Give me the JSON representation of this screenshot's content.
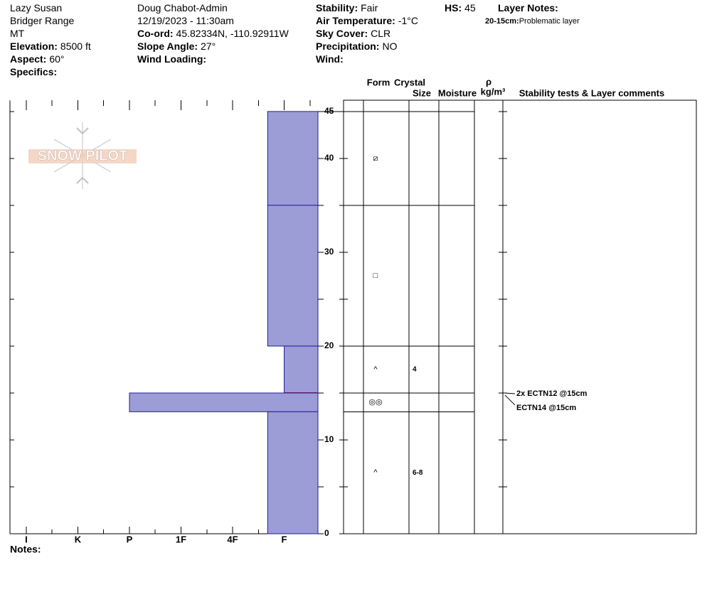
{
  "header": {
    "columns": [
      [
        {
          "value": "Lazy Susan"
        },
        {
          "value": "Bridger Range"
        },
        {
          "value": "MT"
        },
        {
          "label": "Elevation:",
          "value": "8500 ft"
        },
        {
          "label": "Aspect:",
          "value": "60°"
        },
        {
          "label": "Specifics:"
        }
      ],
      [
        {
          "value": "Doug Chabot-Admin"
        },
        {
          "value": "12/19/2023 - 11:30am"
        },
        {
          "label": "Co-ord:",
          "value": "45.82334N, -110.92911W"
        },
        {
          "label": "Slope Angle:",
          "value": "27°"
        },
        {
          "label": "Wind Loading:"
        }
      ],
      [
        {
          "label": "Stability:",
          "value": "Fair"
        },
        {
          "label": "Air Temperature:",
          "value": "-1°C"
        },
        {
          "label": "Sky Cover:",
          "value": "CLR"
        },
        {
          "label": "Precipitation:",
          "value": "NO"
        },
        {
          "label": "Wind:"
        }
      ],
      [
        {
          "label": "HS:",
          "value": "45"
        }
      ],
      [
        {
          "label": "Layer Notes:"
        },
        {
          "label": "20-15cm:",
          "value": "Problematic layer"
        }
      ]
    ]
  },
  "logo": "SNOW PILOT",
  "notes": "Notes:",
  "chart_data": {
    "type": "snowpit",
    "xticks": [
      {
        "value": 0,
        "label": "I"
      },
      {
        "value": 1,
        "label": "K"
      },
      {
        "value": 2,
        "label": "P"
      },
      {
        "value": 3,
        "label": "1F"
      },
      {
        "value": 4,
        "label": "4F"
      },
      {
        "value": 5,
        "label": "F"
      }
    ],
    "xminor": [
      0.5,
      1.5,
      2.5,
      3.5,
      4.5,
      5.5
    ],
    "xlim": [
      -0.317,
      5.655
    ],
    "ylim": [
      0,
      46.2
    ],
    "yticks": [
      0,
      10,
      20,
      30,
      40,
      45
    ],
    "yminor": [
      5,
      15,
      25,
      35
    ],
    "color": "#9c9cd6",
    "columns": [
      "Form",
      "Crystal",
      "Size",
      "Moisture",
      "ρ",
      "kg/m³",
      "Stability tests & Layer comments"
    ],
    "layers": [
      {
        "top": 45,
        "bottom": 35,
        "hardness": 4.68,
        "form": "⧄"
      },
      {
        "top": 35,
        "bottom": 20,
        "hardness": 4.68,
        "form": "□"
      },
      {
        "top": 20,
        "bottom": 15,
        "hardness": 5,
        "form": "^",
        "size": "4",
        "concern": true
      },
      {
        "top": 15,
        "bottom": 13,
        "hardness": 2,
        "form": "◎◎"
      },
      {
        "top": 13,
        "bottom": 0,
        "hardness": 4.68,
        "form": "^",
        "size": "6-8"
      }
    ],
    "tests": [
      {
        "text": "2x ECTN12 @15cm",
        "depth": 15
      },
      {
        "text": "ECTN14 @15cm",
        "depth": 15
      }
    ]
  }
}
